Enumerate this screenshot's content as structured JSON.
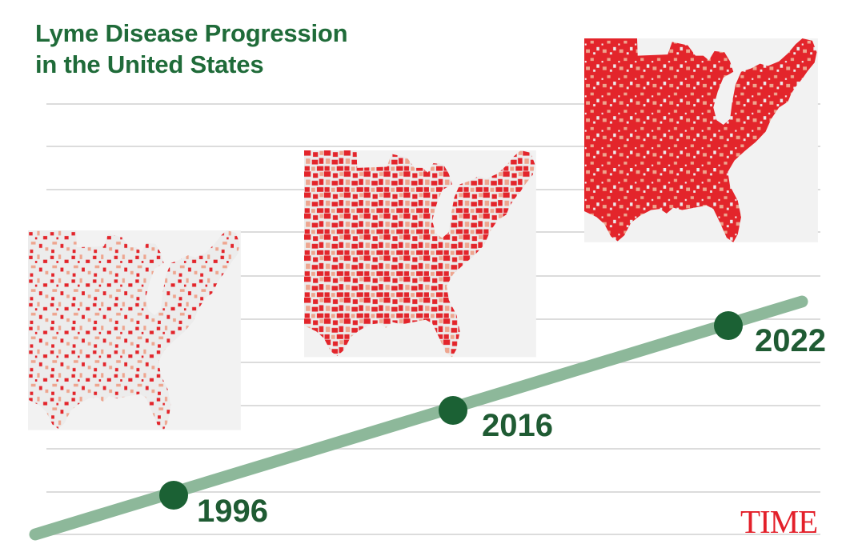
{
  "title": {
    "line1": "Lyme Disease Progression",
    "line2": "in the United States"
  },
  "timeline": [
    {
      "year": "1996"
    },
    {
      "year": "2016"
    },
    {
      "year": "2022"
    }
  ],
  "brand": "TIME",
  "colors": {
    "title": "#1f6b39",
    "timeline_line": "#8db89a",
    "timeline_marker": "#1b6134",
    "map_high": "#e3252b",
    "map_low": "#eea58f",
    "map_base": "#ececec",
    "grid": "#dcdcdc"
  }
}
